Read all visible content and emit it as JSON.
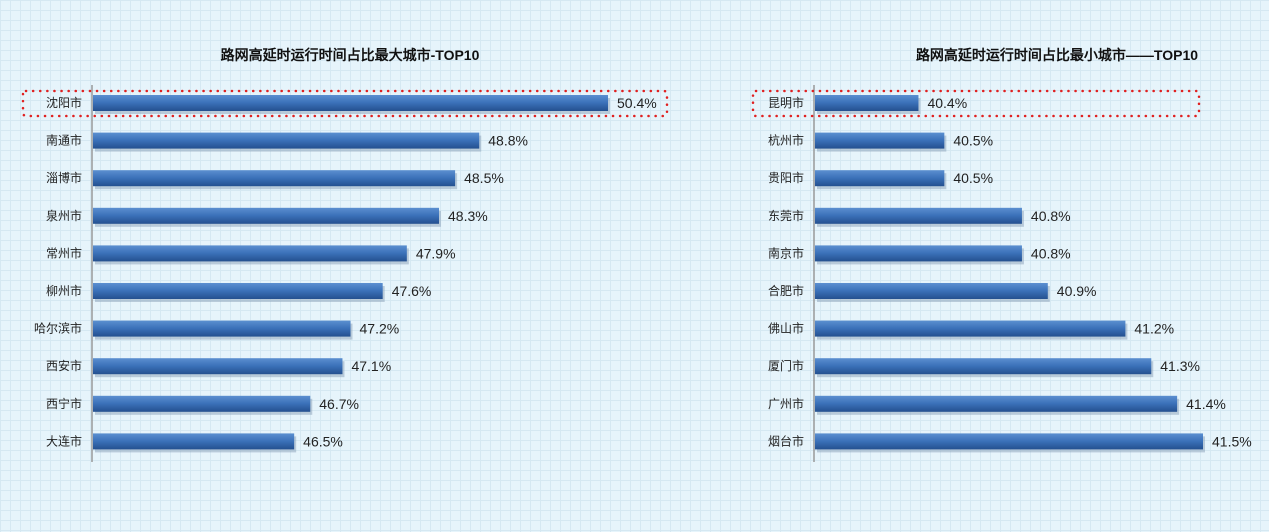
{
  "chart_data": [
    {
      "type": "bar",
      "orientation": "horizontal",
      "title": "路网高延时运行时间占比最大城市-TOP10",
      "categories": [
        "沈阳市",
        "南通市",
        "淄博市",
        "泉州市",
        "常州市",
        "柳州市",
        "哈尔滨市",
        "西安市",
        "西宁市",
        "大连市"
      ],
      "values": [
        50.4,
        48.8,
        48.5,
        48.3,
        47.9,
        47.6,
        47.2,
        47.1,
        46.7,
        46.5
      ],
      "labels": [
        "50.4%",
        "48.8%",
        "48.5%",
        "48.3%",
        "47.9%",
        "47.6%",
        "47.2%",
        "47.1%",
        "46.7%",
        "46.5%"
      ],
      "xlim": [
        44,
        51
      ],
      "highlight": "沈阳市",
      "bar_color": "#3a70b8",
      "grid": false
    },
    {
      "type": "bar",
      "orientation": "horizontal",
      "title": "路网高延时运行时间占比最小城市——TOP10",
      "categories": [
        "昆明市",
        "杭州市",
        "贵阳市",
        "东莞市",
        "南京市",
        "合肥市",
        "佛山市",
        "厦门市",
        "广州市",
        "烟台市"
      ],
      "values": [
        40.4,
        40.5,
        40.5,
        40.8,
        40.8,
        40.9,
        41.2,
        41.3,
        41.4,
        41.5
      ],
      "labels": [
        "40.4%",
        "40.5%",
        "40.5%",
        "40.8%",
        "40.8%",
        "40.9%",
        "41.2%",
        "41.3%",
        "41.4%",
        "41.5%"
      ],
      "xlim": [
        40,
        41.7
      ],
      "highlight": "昆明市",
      "bar_color": "#3a70b8",
      "grid": false
    }
  ]
}
